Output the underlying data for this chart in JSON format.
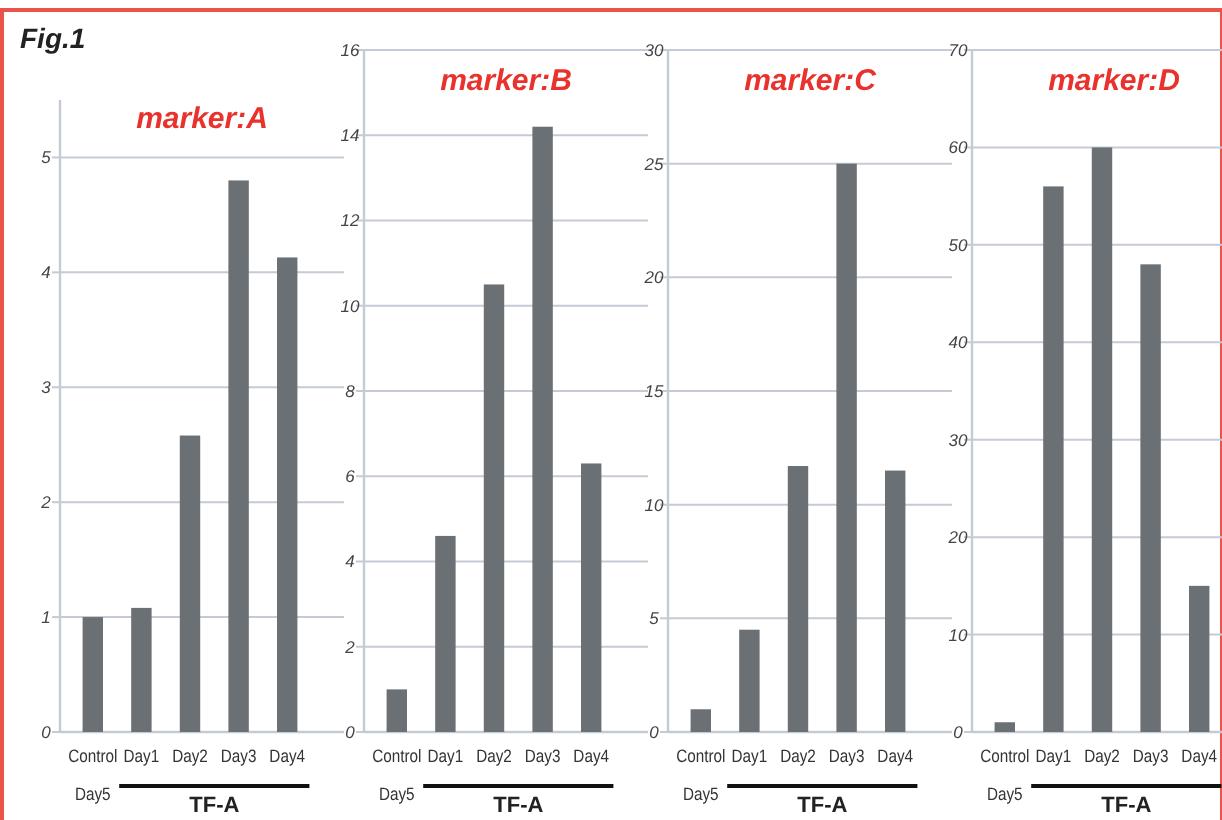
{
  "chart_data": [
    {
      "type": "bar",
      "title": "marker:A",
      "categories": [
        "Control Day5",
        "Day1",
        "Day2",
        "Day3",
        "Day4"
      ],
      "values": [
        1,
        1.08,
        2.58,
        4.8,
        4.13
      ],
      "color": "#6b7075",
      "ylim": [
        0,
        5.5
      ],
      "yticks": [
        0,
        1,
        2,
        3,
        4,
        5
      ],
      "grid": "y",
      "annotations": [
        "Fig.1",
        "TF-A"
      ]
    },
    {
      "type": "bar",
      "title": "marker:B",
      "categories": [
        "Control Day5",
        "Day1",
        "Day2",
        "Day3",
        "Day4"
      ],
      "values": [
        1,
        4.6,
        10.5,
        14.2,
        6.3
      ],
      "color": "#6b7075",
      "ylim": [
        0,
        16
      ],
      "yticks": [
        0,
        2,
        4,
        6,
        8,
        10,
        12,
        14,
        16
      ],
      "grid": "y",
      "annotations": [
        "TF-A"
      ]
    },
    {
      "type": "bar",
      "title": "marker:C",
      "categories": [
        "Control Day5",
        "Day1",
        "Day2",
        "Day3",
        "Day4"
      ],
      "values": [
        1,
        4.5,
        11.7,
        25,
        11.5
      ],
      "color": "#6b7075",
      "ylim": [
        0,
        30
      ],
      "yticks": [
        0,
        5,
        10,
        15,
        20,
        25,
        30
      ],
      "grid": "y",
      "annotations": [
        "TF-A"
      ]
    },
    {
      "type": "bar",
      "title": "marker:D",
      "categories": [
        "Control Day5",
        "Day1",
        "Day2",
        "Day3",
        "Day4"
      ],
      "values": [
        1,
        56,
        60,
        48,
        15
      ],
      "color": "#6b7075",
      "ylim": [
        0,
        70
      ],
      "yticks": [
        0,
        10,
        20,
        30,
        40,
        50,
        60,
        70
      ],
      "grid": "y",
      "annotations": [
        "TF-A"
      ]
    }
  ]
}
